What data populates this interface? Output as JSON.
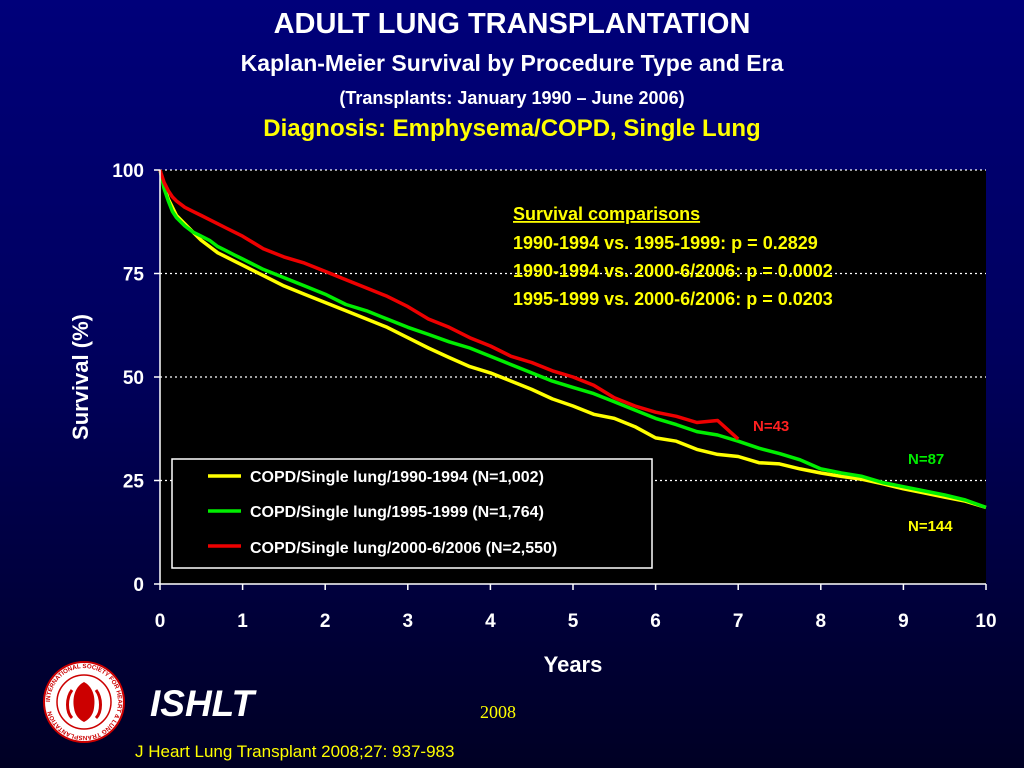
{
  "header": {
    "title": "ADULT LUNG TRANSPLANTATION",
    "subtitle": "Kaplan-Meier Survival by Procedure Type and Era",
    "subtitle2": "(Transplants: January 1990 – June 2006)",
    "diagnosis": "Diagnosis: Emphysema/COPD, Single Lung"
  },
  "chart_data": {
    "type": "line",
    "xlabel": "Years",
    "ylabel": "Survival (%)",
    "xlim": [
      0,
      10
    ],
    "ylim": [
      0,
      100
    ],
    "xticks": [
      "0",
      "1",
      "2",
      "3",
      "4",
      "5",
      "6",
      "7",
      "8",
      "9",
      "10"
    ],
    "yticks": [
      "0",
      "25",
      "50",
      "75",
      "100"
    ],
    "grid": "horizontal dotted",
    "legend_position": "bottom-left",
    "series": [
      {
        "name": "COPD/Single lung/1990-1994 (N=1,002)",
        "color": "#ffff00",
        "end_label": "N=144",
        "x": [
          0,
          0.05,
          0.1,
          0.15,
          0.2,
          0.3,
          0.4,
          0.5,
          0.6,
          0.7,
          0.8,
          0.9,
          1,
          1.25,
          1.5,
          1.75,
          2,
          2.25,
          2.5,
          2.75,
          3,
          3.25,
          3.5,
          3.75,
          4,
          4.25,
          4.5,
          4.75,
          5,
          5.25,
          5.5,
          5.75,
          6,
          6.25,
          6.5,
          6.75,
          7,
          7.25,
          7.5,
          7.75,
          8,
          8.25,
          8.5,
          8.75,
          9,
          9.25,
          9.5,
          9.75,
          10
        ],
        "y": [
          100,
          96,
          93,
          91,
          89,
          87,
          85,
          83,
          81.5,
          80,
          79,
          78,
          77,
          74.5,
          72,
          70,
          68,
          66,
          64,
          62,
          59.5,
          57,
          54.7,
          52.5,
          51,
          49,
          47,
          44.7,
          43,
          41,
          40,
          38,
          35.3,
          34.5,
          32.5,
          31.3,
          30.8,
          29.3,
          29,
          27.8,
          26.8,
          26,
          25.3,
          24.2,
          23,
          22,
          21,
          20,
          18.5
        ]
      },
      {
        "name": "COPD/Single lung/1995-1999 (N=1,764)",
        "color": "#00ee00",
        "end_label": "N=87",
        "x": [
          0,
          0.05,
          0.1,
          0.15,
          0.2,
          0.3,
          0.4,
          0.5,
          0.6,
          0.7,
          0.8,
          0.9,
          1,
          1.25,
          1.5,
          1.75,
          2,
          2.25,
          2.5,
          2.75,
          3,
          3.25,
          3.5,
          3.75,
          4,
          4.25,
          4.5,
          4.75,
          5,
          5.25,
          5.5,
          5.75,
          6,
          6.25,
          6.5,
          6.75,
          7,
          7.25,
          7.5,
          7.75,
          8,
          8.25,
          8.5,
          8.75,
          9,
          9.25,
          9.5,
          9.75,
          10
        ],
        "y": [
          100,
          95.5,
          92.5,
          90,
          88.5,
          86.5,
          85,
          84,
          83,
          81.5,
          80.5,
          79.5,
          78.5,
          76,
          74,
          72,
          70,
          67.5,
          66,
          64,
          62,
          60.3,
          58.5,
          57,
          55,
          53,
          51,
          49,
          47.5,
          46,
          44,
          42,
          40,
          38.5,
          36.8,
          36,
          34.5,
          32.8,
          31.5,
          30,
          27.8,
          26.8,
          26,
          24.5,
          23.5,
          22.5,
          21.5,
          20.3,
          18.5
        ]
      },
      {
        "name": "COPD/Single lung/2000-6/2006 (N=2,550)",
        "color": "#ee0000",
        "end_label": "N=43",
        "x": [
          0,
          0.05,
          0.1,
          0.15,
          0.2,
          0.3,
          0.4,
          0.5,
          0.6,
          0.7,
          0.8,
          0.9,
          1,
          1.25,
          1.5,
          1.75,
          2,
          2.25,
          2.5,
          2.75,
          3,
          3.25,
          3.5,
          3.75,
          4,
          4.25,
          4.5,
          4.75,
          5,
          5.25,
          5.5,
          5.75,
          6,
          6.25,
          6.5,
          6.75,
          7
        ],
        "y": [
          100,
          97,
          95,
          93.5,
          92.5,
          91,
          90,
          89,
          88,
          87,
          86,
          85,
          84,
          81,
          79,
          77.5,
          75.5,
          73.5,
          71.5,
          69.5,
          67,
          64,
          62,
          59.5,
          57.5,
          55,
          53.5,
          51.5,
          50,
          48,
          45,
          43,
          41.5,
          40.5,
          39,
          39.5,
          35
        ]
      }
    ],
    "annotation": {
      "heading": "Survival comparisons",
      "lines": [
        "1990-1994 vs. 1995-1999:  p = 0.2829",
        "1990-1994 vs. 2000-6/2006: p = 0.0002",
        "1995-1999 vs. 2000-6/2006: p = 0.0203"
      ]
    }
  },
  "footer": {
    "brand": "ISHLT",
    "year": "2008",
    "citation": "J Heart Lung Transplant 2008;27: 937-983",
    "logo_text": "INTERNATIONAL SOCIETY FOR HEART & LUNG TRANSPLANTATION"
  }
}
